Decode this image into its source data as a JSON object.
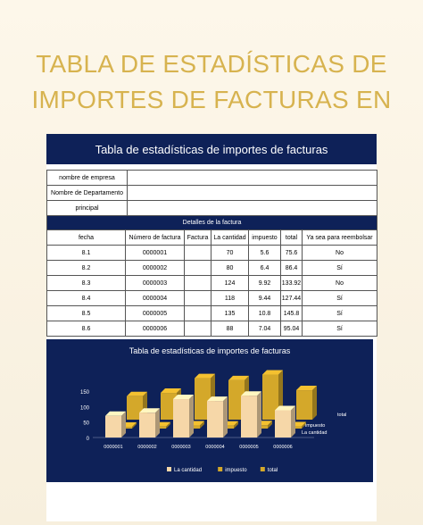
{
  "page": {
    "title_line1": "TABLA DE ESTADÍSTICAS DE",
    "title_line2": "IMPORTES DE FACTURAS EN"
  },
  "sheet": {
    "header": "Tabla de estadísticas de importes de facturas",
    "info_labels": [
      "nombre de empresa",
      "Nombre de Departamento",
      "principal"
    ],
    "details_band": "Detalles de la factura",
    "columns": [
      "fecha",
      "Número de factura",
      "Factura",
      "La cantidad",
      "impuesto",
      "total",
      "Ya sea para reembolsar"
    ],
    "rows": [
      [
        "8.1",
        "0000001",
        "",
        "70",
        "5.6",
        "75.6",
        "No"
      ],
      [
        "8.2",
        "0000002",
        "",
        "80",
        "6.4",
        "86.4",
        "Sí"
      ],
      [
        "8.3",
        "0000003",
        "",
        "124",
        "9.92",
        "133.92",
        "No"
      ],
      [
        "8.4",
        "0000004",
        "",
        "118",
        "9.44",
        "127.44",
        "Sí"
      ],
      [
        "8.5",
        "0000005",
        "",
        "135",
        "10.8",
        "145.8",
        "Sí"
      ],
      [
        "8.6",
        "0000006",
        "",
        "88",
        "7.04",
        "95.04",
        "Sí"
      ]
    ]
  },
  "chart_data": {
    "type": "bar",
    "title": "Tabla de estadísticas de importes de facturas",
    "categories": [
      "0000001",
      "0000002",
      "0000003",
      "0000004",
      "0000005",
      "0000006"
    ],
    "series": [
      {
        "name": "La cantidad",
        "values": [
          70,
          80,
          124,
          118,
          135,
          88
        ]
      },
      {
        "name": "impuesto",
        "values": [
          5.6,
          6.4,
          9.92,
          9.44,
          10.8,
          7.04
        ]
      },
      {
        "name": "total",
        "values": [
          75.6,
          86.4,
          133.92,
          127.44,
          145.8,
          95.04
        ]
      }
    ],
    "yticks": [
      "0",
      "50",
      "100",
      "150"
    ],
    "ylim": [
      0,
      150
    ],
    "legend": "bottom",
    "colors": {
      "La cantidad": "#f6d7a8",
      "impuesto": "#d4a82a",
      "total": "#d4a82a"
    }
  },
  "colors": {
    "navy": "#0e2158",
    "gold": "#d7b34f"
  }
}
